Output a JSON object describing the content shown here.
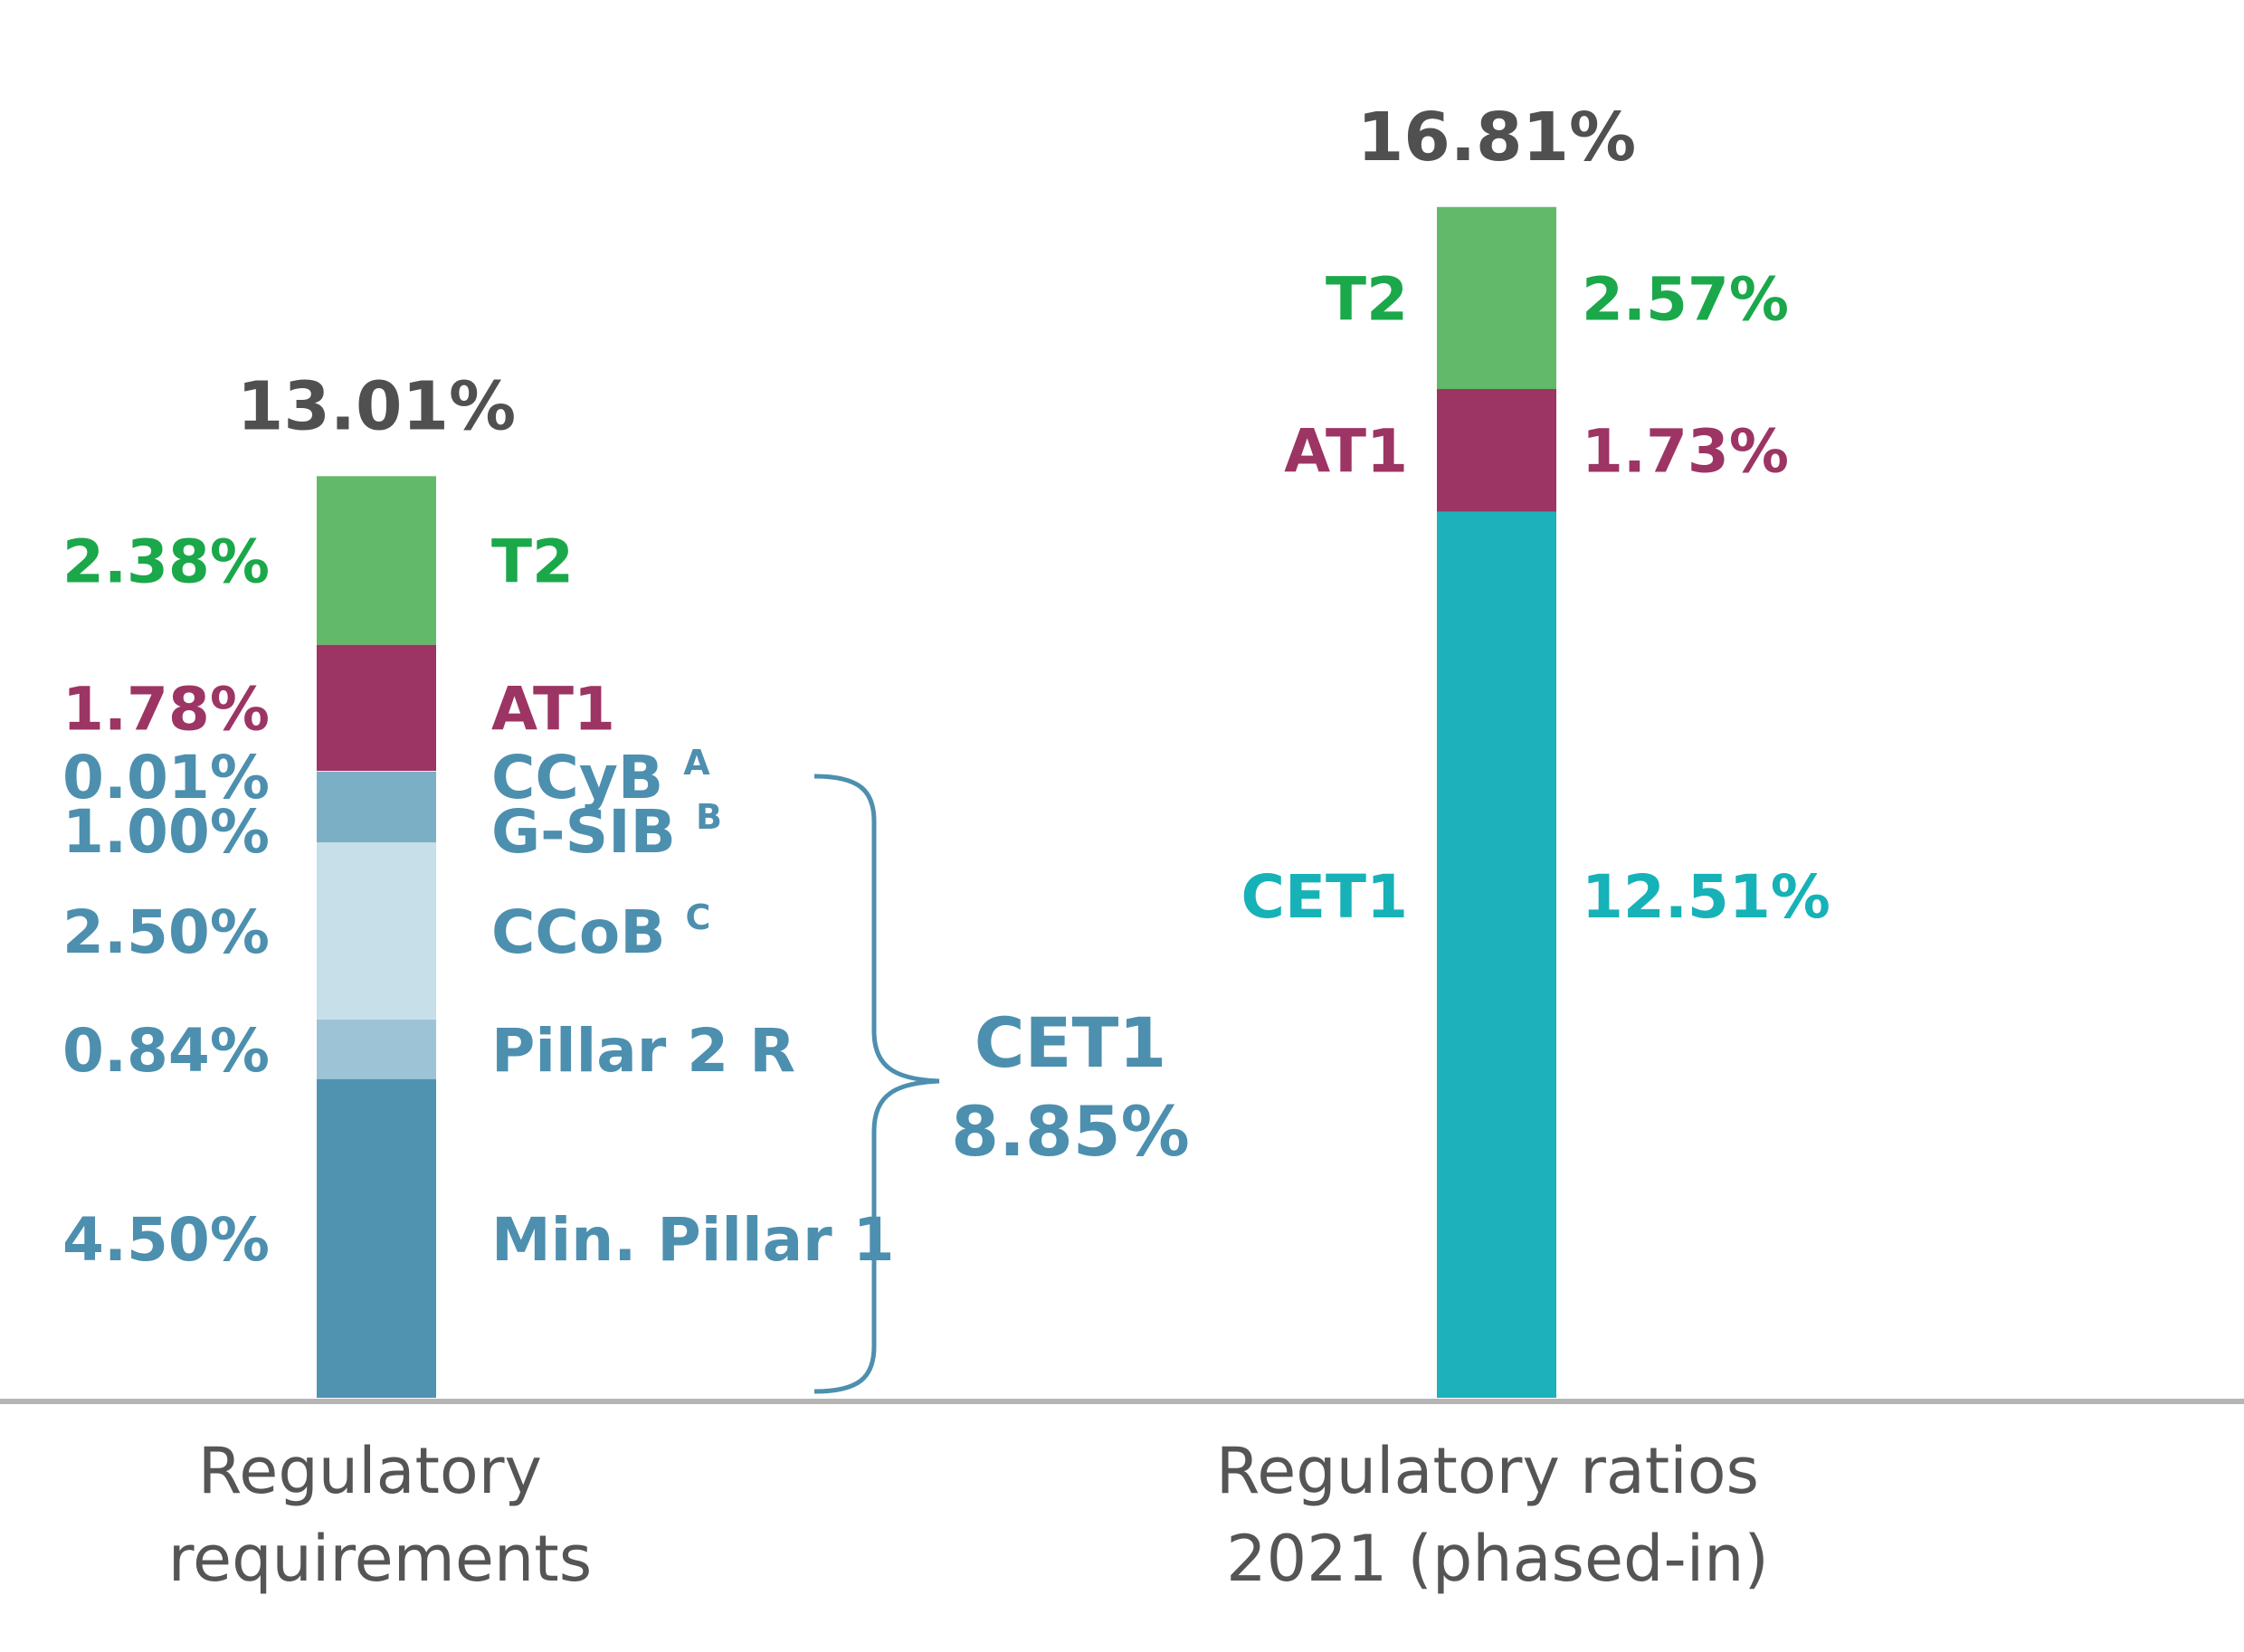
{
  "chart_data": {
    "type": "bar",
    "stacked": true,
    "ylim": [
      0,
      16.81
    ],
    "categories": [
      "Regulatory requirements",
      "Regulatory ratios 2021 (phased-in)"
    ],
    "category_lines": [
      [
        "Regulatory",
        "requirements"
      ],
      [
        "Regulatory ratios",
        "2021 (phased-in)"
      ]
    ],
    "bars": [
      {
        "total_label": "13.01%",
        "segments": [
          {
            "name": "Min. Pillar 1",
            "value": 4.5,
            "label": "4.50%",
            "sup": "",
            "color": "#4f93b0",
            "text_color": "#4d8fae"
          },
          {
            "name": "Pillar 2 R",
            "value": 0.84,
            "label": "0.84%",
            "sup": "",
            "color": "#9dc3d6",
            "text_color": "#4d8fae"
          },
          {
            "name": "CCoB",
            "value": 2.5,
            "label": "2.50%",
            "sup": "C",
            "color": "#c6dfe9",
            "text_color": "#4d8fae"
          },
          {
            "name": "G-SIB",
            "value": 1.0,
            "label": "1.00%",
            "sup": "B",
            "color": "#7aafc6",
            "text_color": "#4d8fae"
          },
          {
            "name": "CCyB",
            "value": 0.01,
            "label": "0.01%",
            "sup": "A",
            "color": "#7aafc6",
            "text_color": "#4d8fae"
          },
          {
            "name": "AT1",
            "value": 1.78,
            "label": "1.78%",
            "sup": "",
            "color": "#9c3563",
            "text_color": "#9c3563"
          },
          {
            "name": "T2",
            "value": 2.38,
            "label": "2.38%",
            "sup": "",
            "color": "#62b96a",
            "text_color": "#1aa84a"
          }
        ]
      },
      {
        "total_label": "16.81%",
        "segments": [
          {
            "name": "CET1",
            "value": 12.51,
            "label": "12.51%",
            "sup": "",
            "color": "#1cb1bb",
            "text_color": "#16b2b8"
          },
          {
            "name": "AT1",
            "value": 1.73,
            "label": "1.73%",
            "sup": "",
            "color": "#9c3563",
            "text_color": "#9c3563"
          },
          {
            "name": "T2",
            "value": 2.57,
            "label": "2.57%",
            "sup": "",
            "color": "#62b96a",
            "text_color": "#1aa84a"
          }
        ]
      }
    ],
    "annotation": {
      "label": "CET1",
      "value": "8.85%"
    }
  }
}
